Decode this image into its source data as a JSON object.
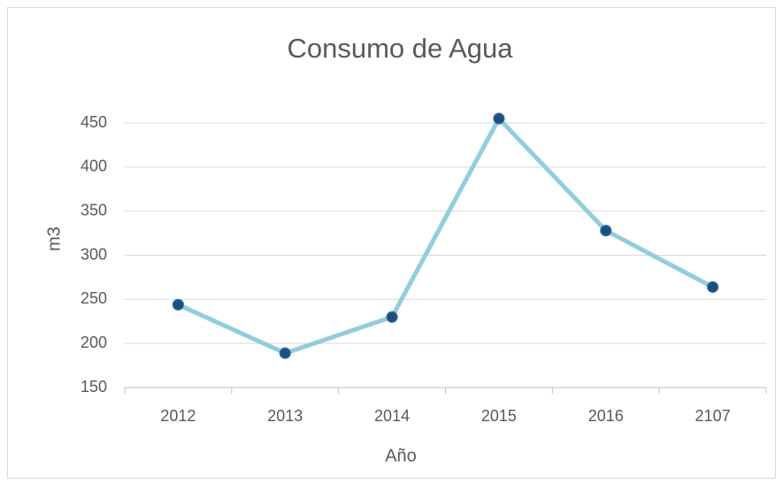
{
  "chart_data": {
    "type": "line",
    "title": "Consumo de Agua",
    "x_label": "Año",
    "y_label": "m3",
    "categories": [
      "2012",
      "2013",
      "2014",
      "2015",
      "2016",
      "2107"
    ],
    "series": [
      {
        "name": "m3",
        "color": "#92cddc",
        "marker_color": "#1f4e79",
        "values": [
          244,
          189,
          230,
          455,
          328,
          264
        ]
      }
    ],
    "ylim": [
      150,
      450
    ],
    "yticks": [
      150,
      200,
      250,
      300,
      350,
      400,
      450
    ],
    "grid": true
  }
}
